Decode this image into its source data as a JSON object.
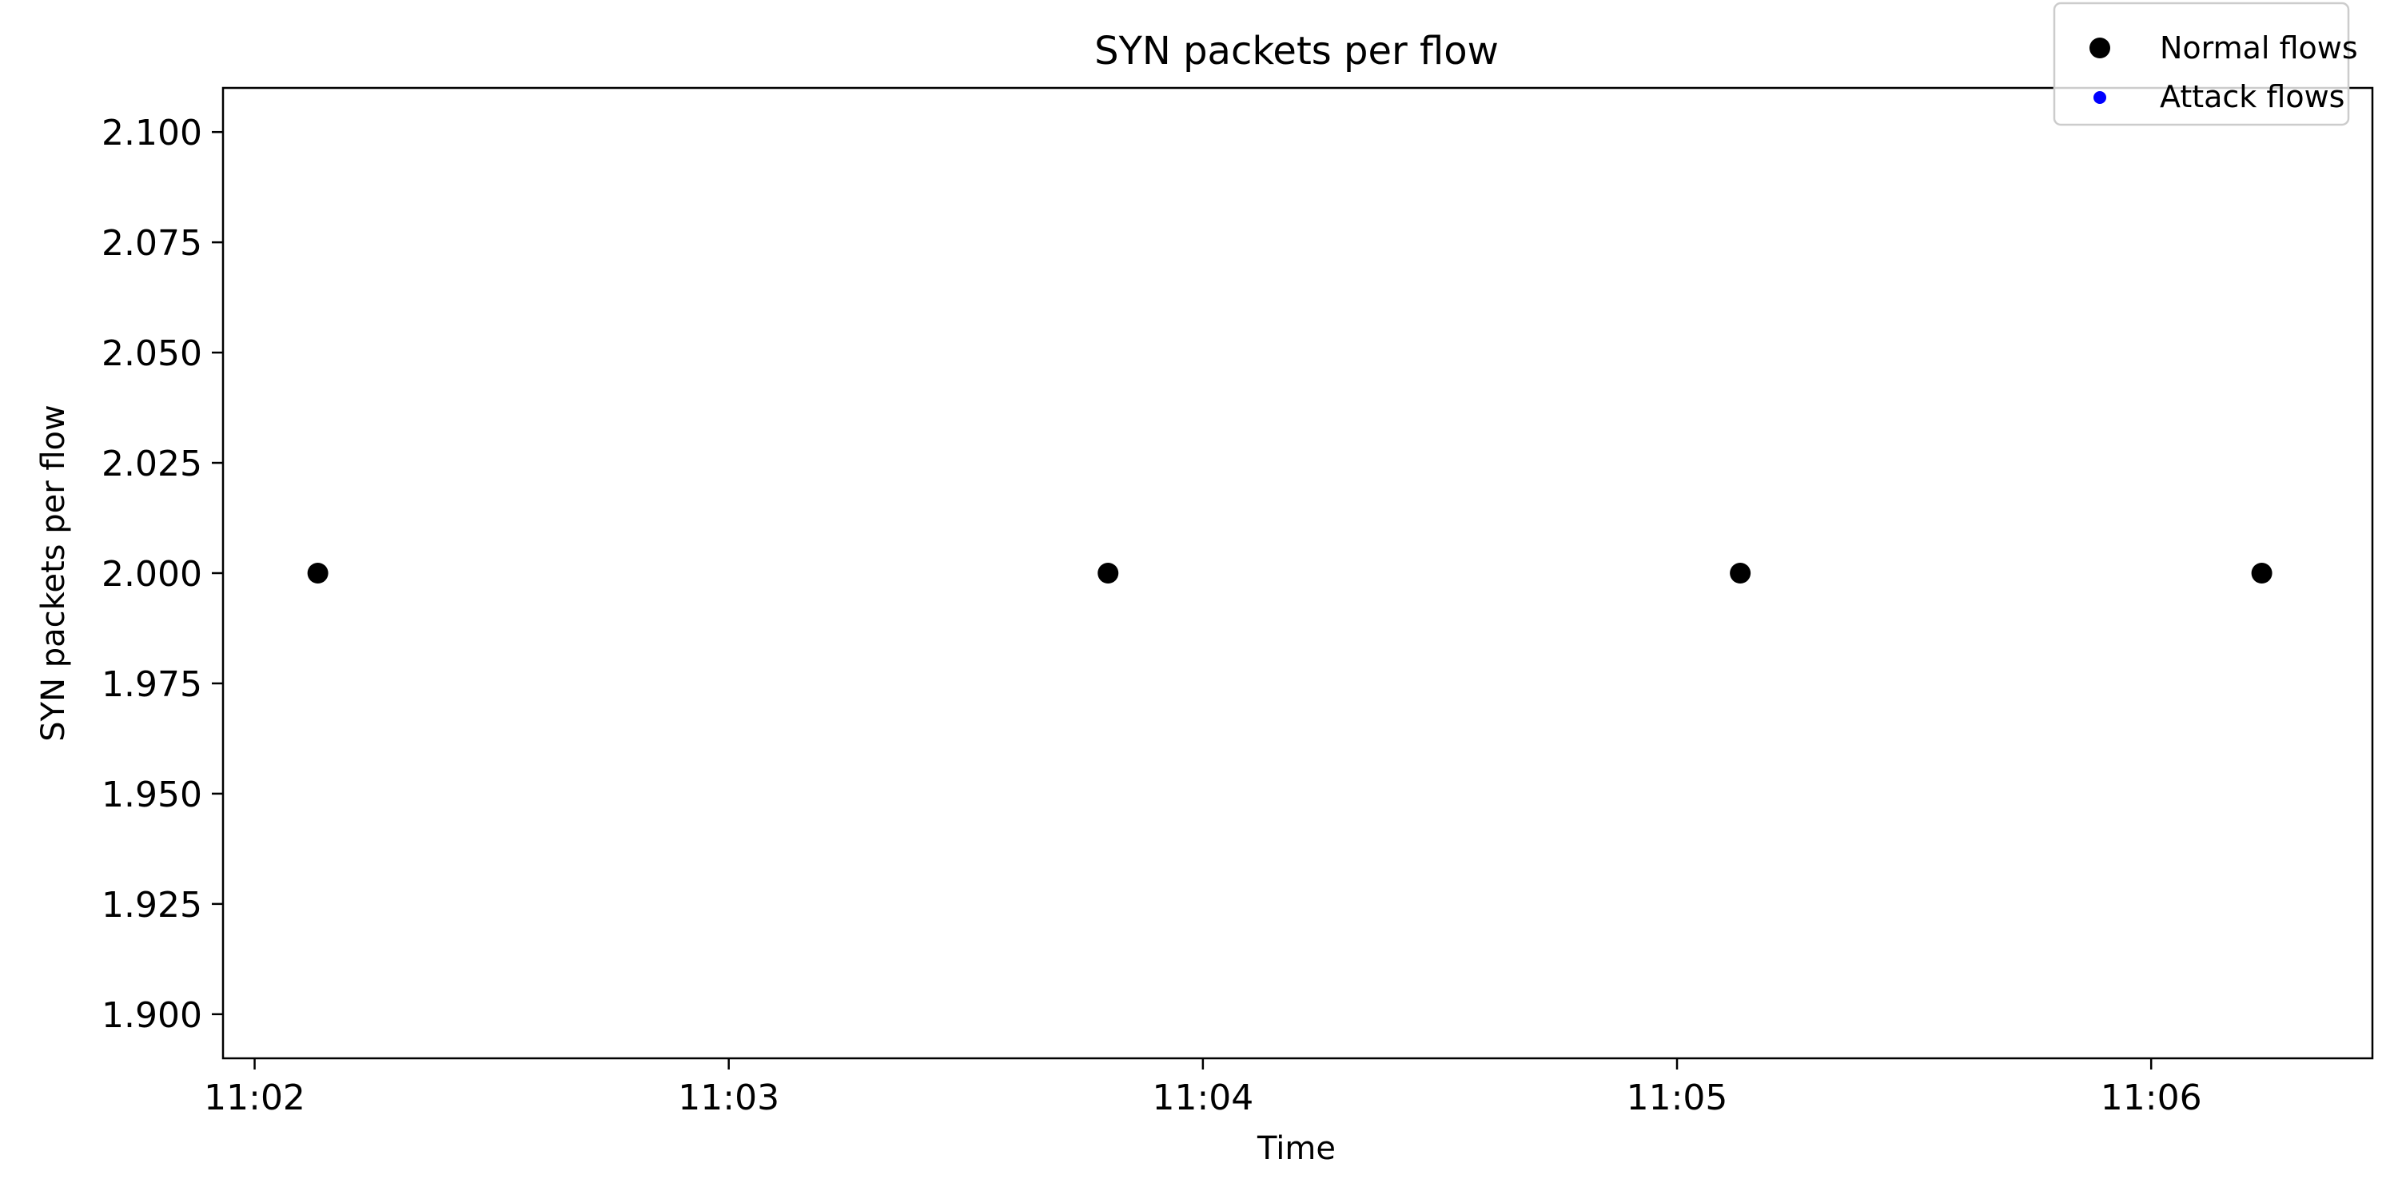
{
  "chart_data": {
    "type": "scatter",
    "title": "SYN packets per flow",
    "xlabel": "Time",
    "ylabel": "SYN packets per flow",
    "xlim": [
      "11:01:56",
      "11:06:28"
    ],
    "ylim": [
      1.89,
      2.11
    ],
    "x_ticks": [
      "11:02",
      "11:03",
      "11:04",
      "11:05",
      "11:06"
    ],
    "y_ticks": [
      "1.900",
      "1.925",
      "1.950",
      "1.975",
      "2.000",
      "2.025",
      "2.050",
      "2.075",
      "2.100"
    ],
    "grid": false,
    "legend_position": "top-right",
    "series": [
      {
        "name": "Normal flows",
        "color": "#000000",
        "x": [
          "11:02:08",
          "11:03:48",
          "11:05:08",
          "11:06:14"
        ],
        "y": [
          2.0,
          2.0,
          2.0,
          2.0
        ]
      },
      {
        "name": "Attack flows",
        "color": "#0000ff",
        "x": [],
        "y": []
      }
    ]
  }
}
